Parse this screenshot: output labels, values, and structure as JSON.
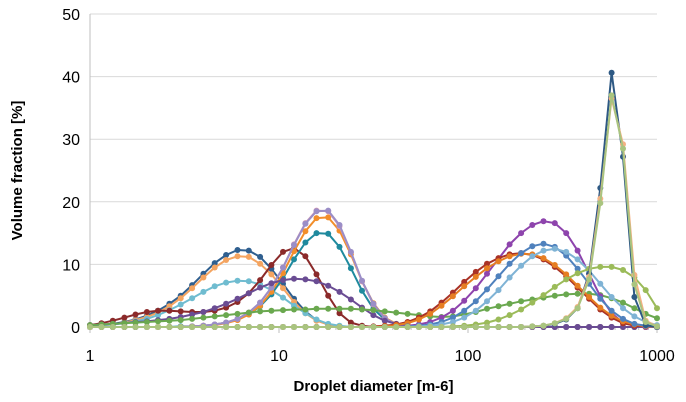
{
  "chart_data": {
    "type": "line",
    "title": "",
    "xlabel": "Droplet diameter [m-6]",
    "ylabel": "Volume fraction [%]",
    "x_scale": "log",
    "xlim": [
      1,
      1000
    ],
    "ylim": [
      0,
      50
    ],
    "x_ticks": [
      1,
      10,
      100,
      1000
    ],
    "x_tick_labels": [
      "1",
      "10",
      "100",
      "1000"
    ],
    "y_ticks": [
      0,
      10,
      20,
      30,
      40,
      50
    ],
    "y_tick_labels": [
      "0",
      "10",
      "20",
      "30",
      "40",
      "50"
    ],
    "grid": "horizontal",
    "legend": "none",
    "x": [
      1.0,
      1.15,
      1.32,
      1.52,
      1.74,
      2.0,
      2.29,
      2.63,
      3.02,
      3.47,
      3.98,
      4.57,
      5.25,
      6.03,
      6.92,
      7.94,
      9.12,
      10.5,
      12.0,
      13.8,
      15.8,
      18.2,
      20.9,
      24.0,
      27.5,
      31.6,
      36.3,
      41.7,
      47.9,
      55.0,
      63.1,
      72.4,
      83.2,
      95.5,
      110,
      126,
      145,
      166,
      191,
      219,
      251,
      288,
      331,
      380,
      437,
      501,
      575,
      661,
      759,
      871,
      1000
    ],
    "series": [
      {
        "color": "#2f5f8f",
        "values": [
          0.2,
          0.3,
          0.5,
          0.8,
          1.2,
          1.8,
          2.6,
          3.7,
          5.0,
          6.7,
          8.5,
          10.2,
          11.5,
          12.3,
          12.2,
          11.2,
          9.3,
          6.9,
          4.5,
          2.5,
          1.1,
          0.4,
          0.1,
          0.0,
          0.0,
          0.0,
          0.0,
          0.0,
          0.0,
          0.0,
          0.0,
          0.0,
          0.0,
          0.0,
          0.0,
          0.0,
          0.0,
          0.0,
          0.0,
          0.0,
          0.0,
          0.0,
          0.0,
          0.0,
          0.0,
          0.0,
          0.0,
          0.0,
          0.0,
          0.0,
          0.0
        ]
      },
      {
        "color": "#f4a460",
        "values": [
          0.2,
          0.3,
          0.4,
          0.7,
          1.1,
          1.6,
          2.3,
          3.3,
          4.6,
          6.2,
          7.9,
          9.5,
          10.7,
          11.3,
          11.2,
          10.1,
          8.4,
          6.2,
          4.0,
          2.2,
          1.0,
          0.4,
          0.1,
          0.0,
          0.0,
          0.0,
          0.0,
          0.0,
          0.0,
          0.0,
          0.0,
          0.0,
          0.0,
          0.0,
          0.0,
          0.0,
          0.0,
          0.0,
          0.0,
          0.0,
          0.0,
          0.0,
          0.0,
          0.0,
          0.0,
          0.0,
          0.0,
          0.0,
          0.0,
          0.0,
          0.0
        ]
      },
      {
        "color": "#6fbcd0",
        "values": [
          0.2,
          0.3,
          0.4,
          0.6,
          0.9,
          1.3,
          1.9,
          2.7,
          3.6,
          4.6,
          5.6,
          6.5,
          7.1,
          7.4,
          7.3,
          6.8,
          5.9,
          4.7,
          3.4,
          2.2,
          1.2,
          0.5,
          0.2,
          0.0,
          0.0,
          0.0,
          0.0,
          0.0,
          0.0,
          0.0,
          0.0,
          0.0,
          0.0,
          0.0,
          0.0,
          0.0,
          0.0,
          0.0,
          0.0,
          0.0,
          0.0,
          0.0,
          0.0,
          0.0,
          0.0,
          0.0,
          0.0,
          0.0,
          0.0,
          0.0,
          0.0
        ]
      },
      {
        "color": "#8b2a2a",
        "values": [
          0.3,
          0.6,
          1.0,
          1.5,
          2.0,
          2.4,
          2.6,
          2.6,
          2.5,
          2.4,
          2.4,
          2.6,
          3.1,
          4.0,
          5.4,
          7.5,
          9.9,
          12.0,
          12.6,
          11.3,
          8.4,
          5.0,
          2.2,
          0.7,
          0.2,
          0.0,
          0.0,
          0.0,
          0.0,
          0.0,
          0.0,
          0.0,
          0.0,
          0.0,
          0.0,
          0.0,
          0.0,
          0.0,
          0.0,
          0.0,
          0.0,
          0.0,
          0.0,
          0.0,
          0.0,
          0.0,
          0.0,
          0.0,
          0.0,
          0.0,
          0.0
        ]
      },
      {
        "color": "#1f8a9e",
        "values": [
          0.0,
          0.0,
          0.0,
          0.0,
          0.0,
          0.0,
          0.0,
          0.0,
          0.1,
          0.1,
          0.2,
          0.4,
          0.7,
          1.2,
          2.0,
          3.3,
          5.2,
          7.8,
          10.8,
          13.5,
          15.0,
          14.9,
          12.8,
          9.4,
          5.8,
          2.9,
          1.2,
          0.4,
          0.1,
          0.0,
          0.0,
          0.0,
          0.0,
          0.0,
          0.0,
          0.0,
          0.0,
          0.0,
          0.0,
          0.0,
          0.0,
          0.0,
          0.0,
          0.0,
          0.0,
          0.0,
          0.0,
          0.0,
          0.0,
          0.0,
          0.0
        ]
      },
      {
        "color": "#f28e2b",
        "values": [
          0.0,
          0.0,
          0.0,
          0.0,
          0.0,
          0.0,
          0.0,
          0.0,
          0.0,
          0.1,
          0.2,
          0.3,
          0.6,
          1.1,
          2.0,
          3.4,
          5.6,
          8.6,
          12.1,
          15.3,
          17.4,
          17.5,
          15.4,
          11.6,
          7.3,
          3.8,
          1.5,
          0.5,
          0.1,
          0.0,
          0.0,
          0.0,
          0.0,
          0.0,
          0.0,
          0.0,
          0.0,
          0.0,
          0.0,
          0.0,
          0.0,
          0.0,
          0.0,
          0.0,
          0.0,
          0.0,
          0.0,
          0.0,
          0.0,
          0.0,
          0.0
        ]
      },
      {
        "color": "#d79ab5",
        "values": [
          0.0,
          0.0,
          0.0,
          0.0,
          0.0,
          0.0,
          0.0,
          0.0,
          0.0,
          0.1,
          0.2,
          0.4,
          0.7,
          1.3,
          2.3,
          3.9,
          6.3,
          9.5,
          13.2,
          16.6,
          18.6,
          18.5,
          16.1,
          11.9,
          7.3,
          3.6,
          1.4,
          0.4,
          0.1,
          0.0,
          0.0,
          0.0,
          0.0,
          0.0,
          0.0,
          0.0,
          0.0,
          0.0,
          0.0,
          0.0,
          0.0,
          0.0,
          0.0,
          0.0,
          0.0,
          0.0,
          0.0,
          0.0,
          0.0,
          0.0,
          0.0
        ]
      },
      {
        "color": "#9b8ec7",
        "values": [
          0.0,
          0.0,
          0.0,
          0.0,
          0.0,
          0.0,
          0.0,
          0.0,
          0.0,
          0.1,
          0.2,
          0.4,
          0.7,
          1.3,
          2.3,
          3.9,
          6.3,
          9.5,
          13.1,
          16.5,
          18.5,
          18.6,
          16.3,
          12.0,
          7.4,
          3.7,
          1.4,
          0.4,
          0.1,
          0.0,
          0.0,
          0.0,
          0.0,
          0.0,
          0.0,
          0.0,
          0.0,
          0.0,
          0.0,
          0.0,
          0.0,
          0.0,
          0.0,
          0.0,
          0.0,
          0.0,
          0.0,
          0.0,
          0.0,
          0.0,
          0.0
        ]
      },
      {
        "color": "#6a4c93",
        "values": [
          0.3,
          0.4,
          0.5,
          0.6,
          0.8,
          0.9,
          1.1,
          1.3,
          1.6,
          2.0,
          2.4,
          3.0,
          3.7,
          4.5,
          5.4,
          6.3,
          7.0,
          7.5,
          7.7,
          7.6,
          7.3,
          6.6,
          5.6,
          4.4,
          3.1,
          1.9,
          1.0,
          0.5,
          0.2,
          0.1,
          0.0,
          0.0,
          0.0,
          0.0,
          0.0,
          0.0,
          0.0,
          0.0,
          0.0,
          0.0,
          0.0,
          0.0,
          0.0,
          0.0,
          0.0,
          0.0,
          0.0,
          0.0,
          0.0,
          0.0,
          0.0
        ]
      },
      {
        "color": "#6aa84f",
        "values": [
          0.3,
          0.4,
          0.5,
          0.6,
          0.7,
          0.8,
          0.9,
          1.0,
          1.1,
          1.3,
          1.5,
          1.7,
          1.9,
          2.1,
          2.3,
          2.5,
          2.6,
          2.7,
          2.8,
          2.8,
          2.9,
          2.9,
          2.9,
          2.9,
          2.8,
          2.7,
          2.5,
          2.3,
          2.1,
          1.9,
          1.7,
          1.6,
          1.7,
          2.0,
          2.4,
          2.9,
          3.3,
          3.7,
          4.1,
          4.4,
          4.7,
          5.0,
          5.2,
          5.3,
          5.3,
          5.1,
          4.6,
          3.9,
          3.0,
          2.1,
          1.4
        ]
      },
      {
        "color": "#8e44ad",
        "values": [
          0.0,
          0.0,
          0.0,
          0.0,
          0.0,
          0.0,
          0.0,
          0.0,
          0.0,
          0.0,
          0.0,
          0.0,
          0.0,
          0.0,
          0.0,
          0.0,
          0.0,
          0.0,
          0.0,
          0.0,
          0.0,
          0.0,
          0.0,
          0.0,
          0.0,
          0.0,
          0.0,
          0.1,
          0.2,
          0.4,
          0.8,
          1.5,
          2.6,
          4.2,
          6.2,
          8.5,
          10.9,
          13.2,
          15.0,
          16.3,
          16.9,
          16.6,
          15.0,
          12.2,
          8.5,
          4.9,
          2.2,
          0.7,
          0.2,
          0.0,
          0.0
        ]
      },
      {
        "color": "#a93226",
        "values": [
          0.0,
          0.0,
          0.0,
          0.0,
          0.0,
          0.0,
          0.0,
          0.0,
          0.0,
          0.0,
          0.0,
          0.0,
          0.0,
          0.0,
          0.0,
          0.0,
          0.0,
          0.0,
          0.0,
          0.0,
          0.0,
          0.0,
          0.0,
          0.0,
          0.0,
          0.1,
          0.2,
          0.4,
          0.8,
          1.5,
          2.5,
          3.9,
          5.5,
          7.2,
          8.8,
          10.1,
          11.0,
          11.6,
          11.8,
          11.5,
          10.8,
          9.6,
          8.1,
          6.3,
          4.5,
          2.8,
          1.5,
          0.6,
          0.2,
          0.1,
          0.0
        ]
      },
      {
        "color": "#e67e22",
        "values": [
          0.0,
          0.0,
          0.0,
          0.0,
          0.0,
          0.0,
          0.0,
          0.0,
          0.0,
          0.0,
          0.0,
          0.0,
          0.0,
          0.0,
          0.0,
          0.0,
          0.0,
          0.0,
          0.0,
          0.0,
          0.0,
          0.0,
          0.0,
          0.0,
          0.0,
          0.0,
          0.1,
          0.3,
          0.6,
          1.2,
          2.1,
          3.4,
          4.9,
          6.5,
          8.0,
          9.4,
          10.5,
          11.3,
          11.7,
          11.6,
          11.0,
          9.9,
          8.4,
          6.6,
          4.8,
          3.1,
          1.8,
          0.9,
          0.4,
          0.1,
          0.0
        ]
      },
      {
        "color": "#4f81bd",
        "values": [
          0.0,
          0.0,
          0.0,
          0.0,
          0.0,
          0.0,
          0.0,
          0.0,
          0.0,
          0.0,
          0.0,
          0.0,
          0.0,
          0.0,
          0.0,
          0.0,
          0.0,
          0.0,
          0.0,
          0.0,
          0.0,
          0.0,
          0.0,
          0.0,
          0.0,
          0.0,
          0.0,
          0.0,
          0.1,
          0.2,
          0.4,
          0.8,
          1.5,
          2.6,
          4.1,
          6.0,
          8.1,
          10.1,
          11.8,
          12.9,
          13.3,
          12.8,
          11.4,
          9.3,
          6.9,
          4.5,
          2.6,
          1.3,
          0.5,
          0.2,
          0.0
        ]
      },
      {
        "color": "#7fb3d5",
        "values": [
          0.0,
          0.0,
          0.0,
          0.0,
          0.0,
          0.0,
          0.0,
          0.0,
          0.0,
          0.0,
          0.0,
          0.0,
          0.0,
          0.0,
          0.0,
          0.0,
          0.0,
          0.0,
          0.0,
          0.0,
          0.0,
          0.0,
          0.0,
          0.0,
          0.0,
          0.0,
          0.0,
          0.0,
          0.0,
          0.1,
          0.2,
          0.4,
          0.8,
          1.5,
          2.6,
          4.1,
          5.9,
          7.9,
          9.8,
          11.3,
          12.2,
          12.5,
          12.0,
          10.8,
          9.0,
          6.9,
          4.8,
          3.0,
          1.7,
          0.8,
          0.3
        ]
      },
      {
        "color": "#9bbb59",
        "values": [
          0.0,
          0.0,
          0.0,
          0.0,
          0.0,
          0.0,
          0.0,
          0.0,
          0.0,
          0.0,
          0.0,
          0.0,
          0.0,
          0.0,
          0.0,
          0.0,
          0.0,
          0.0,
          0.0,
          0.0,
          0.0,
          0.0,
          0.0,
          0.0,
          0.0,
          0.0,
          0.0,
          0.0,
          0.0,
          0.0,
          0.0,
          0.0,
          0.1,
          0.2,
          0.4,
          0.7,
          1.2,
          1.9,
          2.8,
          3.9,
          5.1,
          6.4,
          7.6,
          8.6,
          9.3,
          9.6,
          9.6,
          9.1,
          7.9,
          5.9,
          3.0
        ]
      },
      {
        "color": "#2e5984",
        "values": [
          0.0,
          0.0,
          0.0,
          0.0,
          0.0,
          0.0,
          0.0,
          0.0,
          0.0,
          0.0,
          0.0,
          0.0,
          0.0,
          0.0,
          0.0,
          0.0,
          0.0,
          0.0,
          0.0,
          0.0,
          0.0,
          0.0,
          0.0,
          0.0,
          0.0,
          0.0,
          0.0,
          0.0,
          0.0,
          0.0,
          0.0,
          0.0,
          0.0,
          0.0,
          0.0,
          0.0,
          0.0,
          0.0,
          0.0,
          0.1,
          0.2,
          0.5,
          1.2,
          3.0,
          8.5,
          22.2,
          40.6,
          27.2,
          4.8,
          0.3,
          0.0
        ]
      },
      {
        "color": "#f4b183",
        "values": [
          0.0,
          0.0,
          0.0,
          0.0,
          0.0,
          0.0,
          0.0,
          0.0,
          0.0,
          0.0,
          0.0,
          0.0,
          0.0,
          0.0,
          0.0,
          0.0,
          0.0,
          0.0,
          0.0,
          0.0,
          0.0,
          0.0,
          0.0,
          0.0,
          0.0,
          0.0,
          0.0,
          0.0,
          0.0,
          0.0,
          0.0,
          0.0,
          0.0,
          0.0,
          0.0,
          0.0,
          0.0,
          0.0,
          0.0,
          0.1,
          0.2,
          0.6,
          1.4,
          3.2,
          8.0,
          20.5,
          36.5,
          29.2,
          8.3,
          1.0,
          0.1
        ]
      },
      {
        "color": "#a9c47f",
        "values": [
          0.0,
          0.0,
          0.0,
          0.0,
          0.0,
          0.0,
          0.0,
          0.0,
          0.0,
          0.0,
          0.0,
          0.0,
          0.0,
          0.0,
          0.0,
          0.0,
          0.0,
          0.0,
          0.0,
          0.0,
          0.0,
          0.0,
          0.0,
          0.0,
          0.0,
          0.0,
          0.0,
          0.0,
          0.0,
          0.0,
          0.0,
          0.0,
          0.0,
          0.0,
          0.0,
          0.0,
          0.0,
          0.0,
          0.0,
          0.1,
          0.2,
          0.6,
          1.3,
          3.0,
          7.6,
          19.8,
          37.0,
          28.5,
          6.8,
          0.8,
          0.1
        ]
      }
    ]
  }
}
